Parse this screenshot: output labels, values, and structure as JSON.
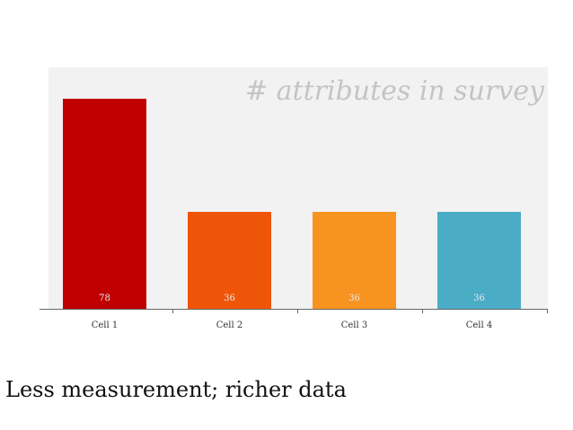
{
  "chart_data": {
    "type": "bar",
    "title": "# attributes in survey",
    "categories": [
      "Cell 1",
      "Cell 2",
      "Cell 3",
      "Cell 4"
    ],
    "values": [
      78,
      36,
      36,
      36
    ],
    "data_labels": [
      "78",
      "36",
      "36",
      "36"
    ],
    "ylim": [
      0,
      80
    ],
    "xlabel": "",
    "ylabel": "",
    "grid": false,
    "legend": "none",
    "colors": [
      "#c00000",
      "#ef5508",
      "#f79320",
      "#4bacc6"
    ],
    "background_color": "#f2f2f2",
    "title_color": "#c4c4c4",
    "label_color": "#e8e8e8"
  },
  "caption": "Less measurement; richer data"
}
